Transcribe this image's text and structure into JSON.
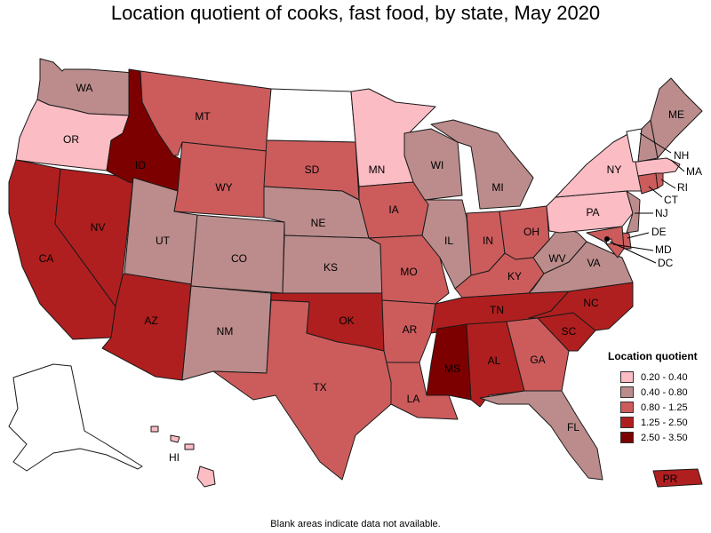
{
  "title": "Location quotient of cooks, fast food, by state, May 2020",
  "footnote": "Blank areas indicate data not available.",
  "legend": {
    "title": "Location quotient",
    "classes": [
      {
        "label": "0.20 - 0.40",
        "color": "#fcbcc4"
      },
      {
        "label": "0.40 - 0.80",
        "color": "#bc8c8c"
      },
      {
        "label": "0.80 - 1.25",
        "color": "#cc5c5c"
      },
      {
        "label": "1.25 - 2.50",
        "color": "#b01f1f"
      },
      {
        "label": "2.50 - 3.50",
        "color": "#7c0000"
      }
    ]
  },
  "states": {
    "WA": "0.40 - 0.80",
    "OR": "0.20 - 0.40",
    "CA": "1.25 - 2.50",
    "NV": "1.25 - 2.50",
    "ID": "2.50 - 3.50",
    "MT": "0.80 - 1.25",
    "WY": "0.80 - 1.25",
    "UT": "0.40 - 0.80",
    "AZ": "1.25 - 2.50",
    "CO": "0.40 - 0.80",
    "NM": "0.40 - 0.80",
    "ND": "no data",
    "SD": "0.80 - 1.25",
    "NE": "0.40 - 0.80",
    "KS": "0.40 - 0.80",
    "OK": "1.25 - 2.50",
    "TX": "0.80 - 1.25",
    "MN": "0.20 - 0.40",
    "IA": "0.80 - 1.25",
    "MO": "0.80 - 1.25",
    "AR": "0.80 - 1.25",
    "LA": "0.80 - 1.25",
    "WI": "0.40 - 0.80",
    "IL": "0.40 - 0.80",
    "MI": "0.40 - 0.80",
    "IN": "0.80 - 1.25",
    "OH": "0.80 - 1.25",
    "KY": "0.80 - 1.25",
    "TN": "1.25 - 2.50",
    "MS": "2.50 - 3.50",
    "AL": "1.25 - 2.50",
    "GA": "0.80 - 1.25",
    "FL": "0.40 - 0.80",
    "SC": "1.25 - 2.50",
    "NC": "1.25 - 2.50",
    "VA": "0.40 - 0.80",
    "WV": "0.40 - 0.80",
    "PA": "0.20 - 0.40",
    "NY": "0.20 - 0.40",
    "ME": "0.40 - 0.80",
    "NH": "0.40 - 0.80",
    "VT": "no data",
    "MA": "0.20 - 0.40",
    "RI": "0.80 - 1.25",
    "CT": "0.80 - 1.25",
    "NJ": "0.40 - 0.80",
    "DE": "0.80 - 1.25",
    "MD": "0.80 - 1.25",
    "DC": "no data",
    "AK": "no data",
    "HI": "0.20 - 0.40",
    "PR": "1.25 - 2.50"
  },
  "labels": {
    "WA": "WA",
    "OR": "OR",
    "CA": "CA",
    "NV": "NV",
    "ID": "ID",
    "MT": "MT",
    "WY": "WY",
    "UT": "UT",
    "AZ": "AZ",
    "CO": "CO",
    "NM": "NM",
    "SD": "SD",
    "NE": "NE",
    "KS": "KS",
    "OK": "OK",
    "TX": "TX",
    "MN": "MN",
    "IA": "IA",
    "MO": "MO",
    "AR": "AR",
    "LA": "LA",
    "WI": "WI",
    "IL": "IL",
    "MI": "MI",
    "IN": "IN",
    "OH": "OH",
    "KY": "KY",
    "TN": "TN",
    "MS": "MS",
    "AL": "AL",
    "GA": "GA",
    "FL": "FL",
    "SC": "SC",
    "NC": "NC",
    "VA": "VA",
    "WV": "WV",
    "PA": "PA",
    "NY": "NY",
    "ME": "ME",
    "NH": "NH",
    "MA": "MA",
    "RI": "RI",
    "CT": "CT",
    "NJ": "NJ",
    "DE": "DE",
    "MD": "MD",
    "DC": "DC",
    "HI": "HI",
    "PR": "PR"
  }
}
